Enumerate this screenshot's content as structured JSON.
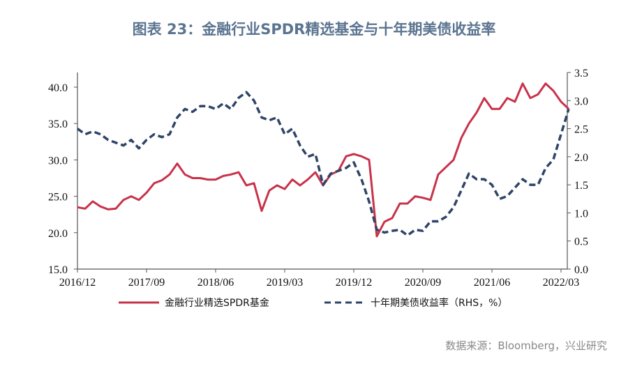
{
  "title": "图表 23：金融行业SPDR精选基金与十年期美债收益率",
  "source": "数据来源：Bloomberg，兴业研究",
  "chart_data": {
    "type": "line",
    "title": "图表 23：金融行业SPDR精选基金与十年期美债收益率",
    "x_ticks": [
      "2016/12",
      "2017/09",
      "2018/06",
      "2019/03",
      "2019/12",
      "2020/09",
      "2021/06",
      "2022/03"
    ],
    "y_left": {
      "lim": [
        15,
        40
      ],
      "ticks": [
        "15.0",
        "20.0",
        "25.0",
        "30.0",
        "35.0",
        "40.0"
      ]
    },
    "y_right": {
      "lim": [
        0,
        3.5
      ],
      "ticks": [
        "0.0",
        "0.5",
        "1.0",
        "1.5",
        "2.0",
        "2.5",
        "3.0",
        "3.5"
      ]
    },
    "grid": false,
    "legend": "bottom",
    "x": [
      "2016-12",
      "2017-01",
      "2017-02",
      "2017-03",
      "2017-04",
      "2017-05",
      "2017-06",
      "2017-07",
      "2017-08",
      "2017-09",
      "2017-10",
      "2017-11",
      "2017-12",
      "2018-01",
      "2018-02",
      "2018-03",
      "2018-04",
      "2018-05",
      "2018-06",
      "2018-07",
      "2018-08",
      "2018-09",
      "2018-10",
      "2018-11",
      "2018-12",
      "2019-01",
      "2019-02",
      "2019-03",
      "2019-04",
      "2019-05",
      "2019-06",
      "2019-07",
      "2019-08",
      "2019-09",
      "2019-10",
      "2019-11",
      "2019-12",
      "2020-01",
      "2020-02",
      "2020-03",
      "2020-04",
      "2020-05",
      "2020-06",
      "2020-07",
      "2020-08",
      "2020-09",
      "2020-10",
      "2020-11",
      "2020-12",
      "2021-01",
      "2021-02",
      "2021-03",
      "2021-04",
      "2021-05",
      "2021-06",
      "2021-07",
      "2021-08",
      "2021-09",
      "2021-10",
      "2021-11",
      "2021-12",
      "2022-01",
      "2022-02",
      "2022-03",
      "2022-04"
    ],
    "series": [
      {
        "name": "金融行业精选SPDR基金",
        "axis": "left",
        "color": "#c8324a",
        "style": "solid",
        "values": [
          23.5,
          23.3,
          24.3,
          23.6,
          23.2,
          23.3,
          24.5,
          25.0,
          24.5,
          25.5,
          26.8,
          27.2,
          28.0,
          29.5,
          28.0,
          27.5,
          27.5,
          27.3,
          27.3,
          27.8,
          28.0,
          28.3,
          26.5,
          26.8,
          23.0,
          25.8,
          26.5,
          26.0,
          27.3,
          26.5,
          27.3,
          28.3,
          26.5,
          28.0,
          28.5,
          30.5,
          30.8,
          30.5,
          30.0,
          19.5,
          21.5,
          22.0,
          24.0,
          24.0,
          25.0,
          24.8,
          24.5,
          28.0,
          29.0,
          30.0,
          33.0,
          35.0,
          36.5,
          38.5,
          37.0,
          37.0,
          38.5,
          38.0,
          40.5,
          38.5,
          39.0,
          40.5,
          39.5,
          38.0,
          37.0
        ]
      },
      {
        "name": "十年期美债收益率（RHS，%）",
        "axis": "right",
        "color": "#2e4468",
        "style": "dashed",
        "values": [
          2.5,
          2.4,
          2.45,
          2.4,
          2.3,
          2.25,
          2.2,
          2.3,
          2.15,
          2.3,
          2.4,
          2.35,
          2.4,
          2.7,
          2.85,
          2.8,
          2.9,
          2.9,
          2.85,
          2.95,
          2.85,
          3.05,
          3.15,
          3.0,
          2.7,
          2.65,
          2.7,
          2.4,
          2.5,
          2.2,
          2.0,
          2.05,
          1.5,
          1.7,
          1.75,
          1.8,
          1.9,
          1.6,
          1.2,
          0.7,
          0.65,
          0.68,
          0.7,
          0.6,
          0.7,
          0.68,
          0.85,
          0.85,
          0.93,
          1.1,
          1.4,
          1.7,
          1.6,
          1.6,
          1.5,
          1.25,
          1.3,
          1.45,
          1.6,
          1.5,
          1.5,
          1.8,
          1.95,
          2.4,
          2.85
        ]
      }
    ]
  }
}
